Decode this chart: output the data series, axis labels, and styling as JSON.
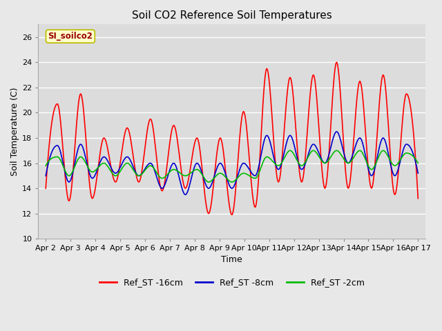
{
  "title": "Soil CO2 Reference Soil Temperatures",
  "xlabel": "Time",
  "ylabel": "Soil Temperature (C)",
  "ylim": [
    10,
    27
  ],
  "yticks": [
    10,
    12,
    14,
    16,
    18,
    20,
    22,
    24,
    26
  ],
  "plot_bg_color": "#dcdcdc",
  "fig_bg_color": "#e8e8e8",
  "label_box_text": "SI_soilco2",
  "label_box_facecolor": "#ffffcc",
  "label_box_edgecolor": "#bbbb00",
  "label_box_textcolor": "#990000",
  "series": {
    "Ref_ST -16cm": {
      "color": "#ff0000",
      "linewidth": 1.2
    },
    "Ref_ST -8cm": {
      "color": "#0000cc",
      "linewidth": 1.2
    },
    "Ref_ST -2cm": {
      "color": "#00bb00",
      "linewidth": 1.2
    }
  },
  "x_tick_labels": [
    "Apr 2",
    "Apr 3",
    "Apr 4",
    "Apr 5",
    "Apr 6",
    "Apr 7",
    "Apr 8",
    "Apr 9",
    "Apr 10",
    "Apr 11",
    "Apr 12",
    "Apr 13",
    "Apr 14",
    "Apr 15",
    "Apr 16",
    "Apr 17"
  ],
  "grid_color": "#ffffff",
  "grid_linewidth": 1.0,
  "red_peaks": [
    14.0,
    20.7,
    13.0,
    21.5,
    13.2,
    18.0,
    14.5,
    18.8,
    14.5,
    19.5,
    13.8,
    19.0,
    14.0,
    18.0,
    12.0,
    18.0,
    11.9,
    20.1,
    12.5,
    23.5,
    14.5,
    22.8,
    14.5,
    23.0,
    14.0,
    24.0,
    14.0,
    22.5,
    14.0,
    23.0,
    13.5,
    21.5,
    13.2
  ],
  "blue_peaks": [
    15.0,
    17.4,
    14.5,
    17.5,
    14.8,
    16.5,
    15.2,
    16.5,
    15.0,
    16.0,
    14.0,
    16.0,
    13.5,
    16.0,
    14.0,
    16.0,
    14.0,
    16.0,
    15.0,
    18.2,
    15.5,
    18.2,
    15.5,
    17.5,
    16.0,
    18.5,
    16.0,
    18.0,
    15.0,
    18.0,
    15.0,
    17.5,
    15.2
  ],
  "green_peaks": [
    15.8,
    16.5,
    15.0,
    16.5,
    15.3,
    16.0,
    15.0,
    16.0,
    15.0,
    15.8,
    14.8,
    15.5,
    15.0,
    15.5,
    14.5,
    15.2,
    14.5,
    15.2,
    14.8,
    16.5,
    15.8,
    17.0,
    15.8,
    17.0,
    16.0,
    17.0,
    16.0,
    17.0,
    15.5,
    17.0,
    15.8,
    16.8,
    16.0
  ]
}
